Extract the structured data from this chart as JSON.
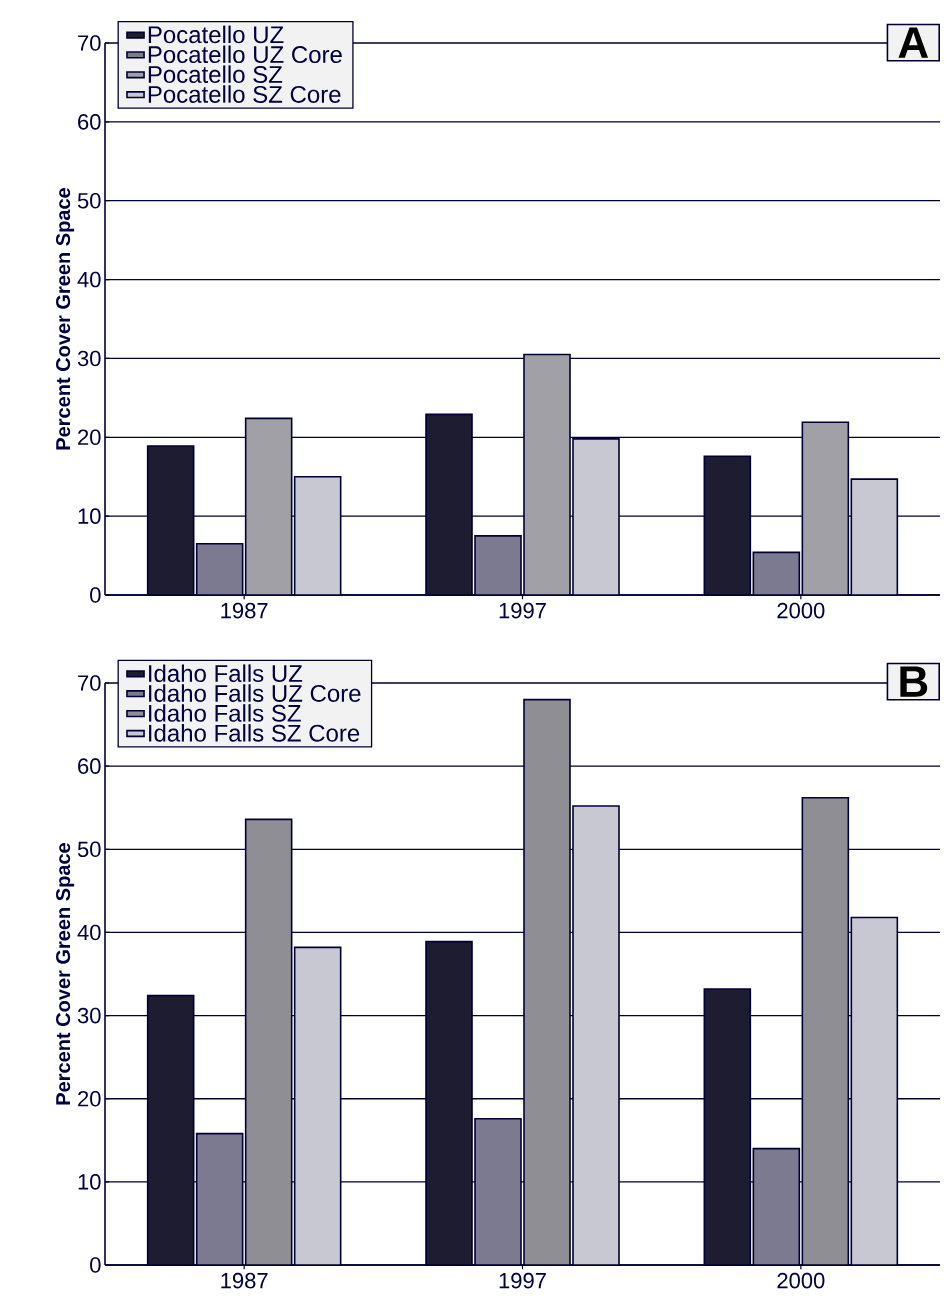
{
  "chart_data": [
    {
      "type": "bar",
      "ylabel": "Percent Cover Green Space",
      "categories": [
        "1987",
        "1997",
        "2000"
      ],
      "series": [
        {
          "name": "Pocatello UZ",
          "color": "#1e1c30",
          "values": [
            18.9,
            22.9,
            17.6
          ]
        },
        {
          "name": "Pocatello UZ Core",
          "color": "#7c7a90",
          "values": [
            6.5,
            7.5,
            5.4
          ]
        },
        {
          "name": "Pocatello SZ",
          "color": "#a0a0a6",
          "values": [
            22.4,
            30.5,
            21.9
          ]
        },
        {
          "name": "Pocatello SZ Core",
          "color": "#c8c8d2",
          "values": [
            15.0,
            19.8,
            14.7
          ]
        }
      ],
      "ylim": [
        0,
        70
      ],
      "yticks": [
        0,
        10,
        20,
        30,
        40,
        50,
        60,
        70
      ],
      "grid": "y",
      "legend": "top left",
      "annotations": [
        "A"
      ]
    },
    {
      "type": "bar",
      "ylabel": "Percent Cover Green Space",
      "categories": [
        "1987",
        "1997",
        "2000"
      ],
      "series": [
        {
          "name": "Idaho Falls UZ",
          "color": "#1e1c30",
          "values": [
            32.4,
            38.9,
            33.2
          ]
        },
        {
          "name": "Idaho Falls UZ Core",
          "color": "#7c7a90",
          "values": [
            15.8,
            17.6,
            14.0
          ]
        },
        {
          "name": "Idaho Falls SZ",
          "color": "#8e8e94",
          "values": [
            53.6,
            68.0,
            56.2
          ]
        },
        {
          "name": "Idaho Falls SZ Core",
          "color": "#c8c8d2",
          "values": [
            38.2,
            55.2,
            41.8
          ]
        }
      ],
      "ylim": [
        0,
        70
      ],
      "yticks": [
        0,
        10,
        20,
        30,
        40,
        50,
        60,
        70
      ],
      "grid": "y",
      "legend": "top left",
      "annotations": [
        "B"
      ]
    }
  ]
}
